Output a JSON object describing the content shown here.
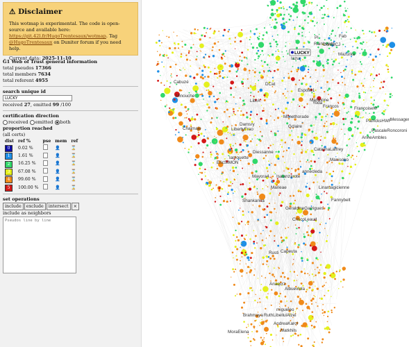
{
  "disclaimer": {
    "title": "Disclaimer",
    "icon": "warning-icon",
    "line1": "This wotmap is experimental. The code is open-source and available here:",
    "link1": "https://git.42l.fr/HugoTrentesaux/wotmap",
    "line2": ". Tag",
    "link2": "@HugoTrentesaux",
    "line3": "on Duniter forum if you need help.",
    "date_label": "Current data:",
    "date_value": "2025-11-10"
  },
  "info": {
    "title": "Ğ1 Web of Trust general information",
    "pseudos_label": "total pseudos",
    "pseudos_value": "17366",
    "members_label": "total members",
    "members_value": "7634",
    "referent_label": "total referent",
    "referent_value": "4955"
  },
  "search": {
    "title": "search unique id",
    "value": "LUCKY",
    "received_label": "received",
    "received_value": "27",
    "emitted_label": ", emitted",
    "emitted_value": "99",
    "total": "/100"
  },
  "direction": {
    "title": "certification direction",
    "options": [
      "received",
      "emitted",
      "both"
    ],
    "selected": "both"
  },
  "proportion": {
    "title": "proportion reached",
    "subtitle": "(all certs)",
    "headers": [
      "dist",
      "ref %",
      "pse",
      "mem",
      "ref"
    ],
    "rows": [
      {
        "dist": "0",
        "pct": "0.02 %",
        "color": "#0d0da8"
      },
      {
        "dist": "1",
        "pct": "1.61 %",
        "color": "#1e8fe6"
      },
      {
        "dist": "2",
        "pct": "16.25 %",
        "color": "#31d86a"
      },
      {
        "dist": "3",
        "pct": "67.08 %",
        "color": "#e4f01c"
      },
      {
        "dist": "4",
        "pct": "99.60 %",
        "color": "#f08a1a"
      },
      {
        "dist": "5",
        "pct": "100.00 %",
        "color": "#d41818"
      }
    ]
  },
  "setops": {
    "title": "set operations",
    "buttons": [
      "include",
      "exclude",
      "intersect",
      "×"
    ],
    "neighbors_label": "include as neighbors",
    "placeholder": "Pseudos line by line"
  },
  "map": {
    "selected": "LUCKY",
    "labels": [
      "Pi",
      "Fab",
      "Rainbowlu",
      "OcioDCJ",
      "Mazurka",
      "Iazur",
      "Cabuzé",
      "DCat",
      "Minouche",
      "Espoli61",
      "LibrA",
      "Marlinone",
      "Yoda",
      "Mimethorade",
      "Francos",
      "Gclaire",
      "FrancoiseM",
      "Messager",
      "PatricksHWF",
      "Damsry",
      "LibertyFrao",
      "PascaleRoncoroni",
      "Chaimaje",
      "AnneAmbles",
      "Diessanne",
      "CatalinaLaffrey",
      "EricSIMON",
      "Iamouette",
      "Manisoko",
      "Mayora4",
      "Isalanzarote",
      "annecleda",
      "Marieae",
      "Linamagicienne",
      "Shankarina",
      "Fannybelt",
      "GeraldineGarrigues",
      "CriscoLeaud",
      "Rusti",
      "Capeuta",
      "Anaqcrz",
      "Albueviola",
      "migueleo",
      "Brahmaya",
      "RuthLibellulAlzei",
      "AndreaKarol",
      "Matkhils",
      "MoraElena"
    ]
  }
}
